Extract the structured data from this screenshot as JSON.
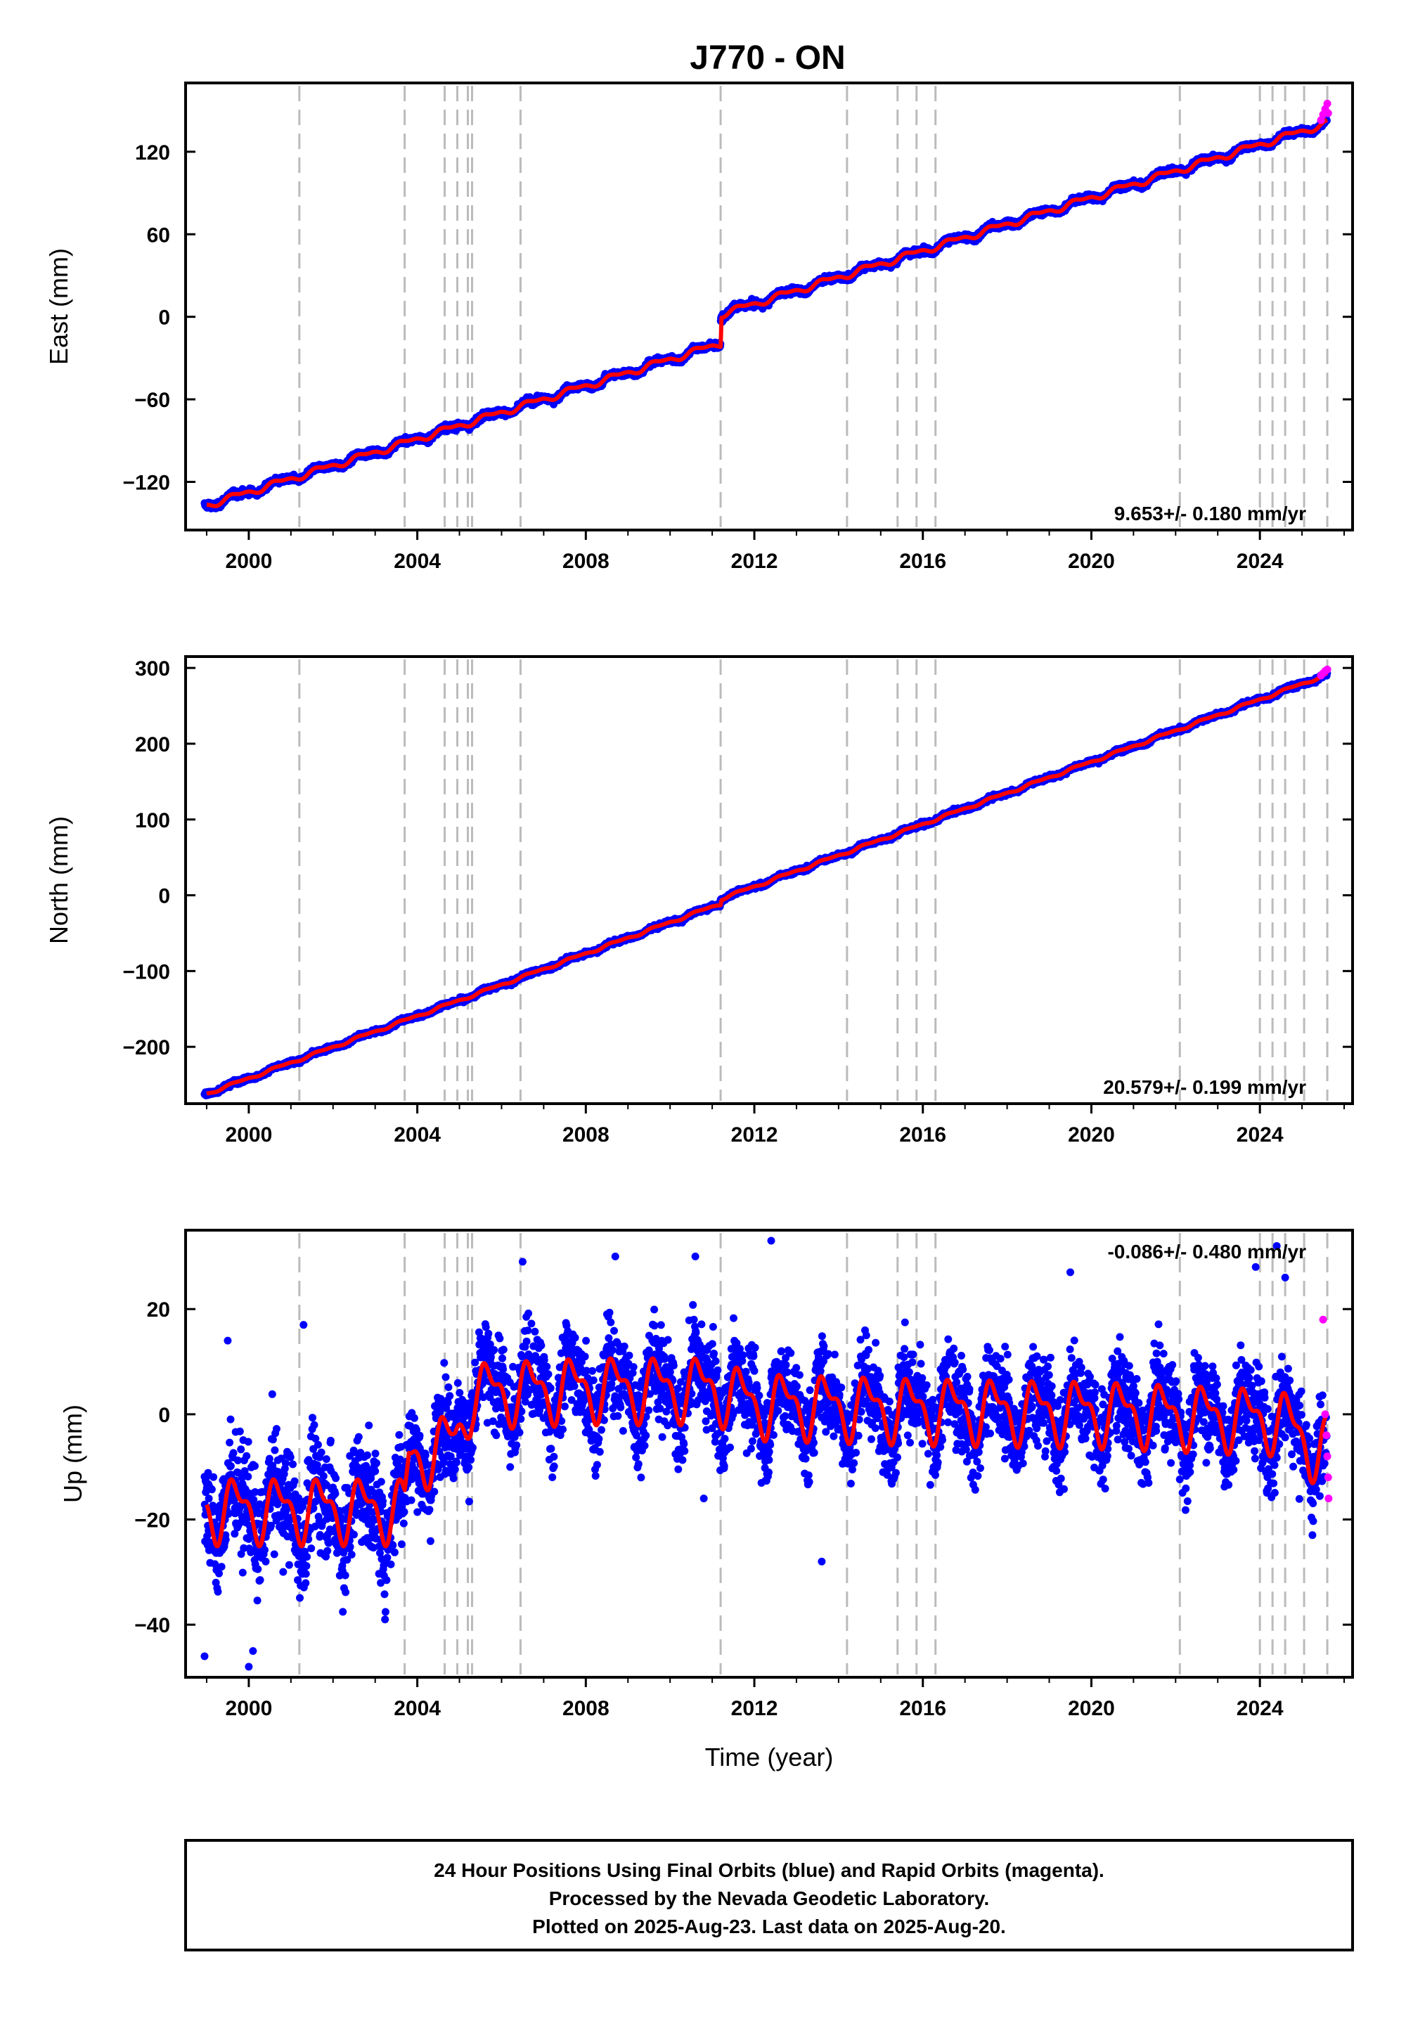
{
  "title": "J770 - ON",
  "footer": {
    "line1": "24 Hour Positions Using Final Orbits (blue) and Rapid Orbits (magenta).",
    "line2": "Processed by the Nevada Geodetic Laboratory.",
    "line3": "Plotted on 2025-Aug-23. Last data on 2025-Aug-20."
  },
  "colors": {
    "final_orbits": "#0000ff",
    "rapid_orbits": "#ff00ff",
    "model": "#ff0000",
    "event_lines": "#bbbbbb"
  },
  "chart_data": [
    {
      "type": "scatter",
      "name": "east",
      "ylabel": "East (mm)",
      "xlabel": "",
      "rate_label": "9.653+/- 0.180 mm/yr",
      "xlim": [
        1998.5,
        2026.2
      ],
      "ylim": [
        -155,
        170
      ],
      "yticks": [
        -120,
        -60,
        0,
        60,
        120
      ],
      "xticks": [
        2000,
        2004,
        2008,
        2012,
        2016,
        2020,
        2024
      ],
      "event_lines": [
        2001.2,
        2003.7,
        2004.65,
        2004.95,
        2005.2,
        2005.3,
        2006.45,
        2011.2,
        2014.2,
        2015.4,
        2015.85,
        2016.3,
        2022.1,
        2024.0,
        2024.3,
        2024.6,
        2025.05,
        2025.6
      ],
      "trend": {
        "rate": 9.653,
        "y_at_1999": -137,
        "offsets": [
          {
            "t": 2011.2,
            "dy": 21
          }
        ]
      },
      "seasonal_amp": 2,
      "noise": 1.6,
      "rapid": [
        [
          2025.45,
          143
        ],
        [
          2025.5,
          147
        ],
        [
          2025.55,
          151
        ],
        [
          2025.6,
          155
        ],
        [
          2025.62,
          148
        ]
      ]
    },
    {
      "type": "scatter",
      "name": "north",
      "ylabel": "North (mm)",
      "xlabel": "",
      "rate_label": "20.579+/- 0.199 mm/yr",
      "xlim": [
        1998.5,
        2026.2
      ],
      "ylim": [
        -275,
        315
      ],
      "yticks": [
        -200,
        -100,
        0,
        100,
        200,
        300
      ],
      "xticks": [
        2000,
        2004,
        2008,
        2012,
        2016,
        2020,
        2024
      ],
      "event_lines": [
        2001.2,
        2003.7,
        2004.65,
        2004.95,
        2005.2,
        2005.3,
        2006.45,
        2011.2,
        2014.2,
        2015.4,
        2015.85,
        2016.3,
        2022.1,
        2024.0,
        2024.3,
        2024.6,
        2025.05,
        2025.6
      ],
      "trend": {
        "rate": 20.579,
        "y_at_1999": -262,
        "offsets": [
          {
            "t": 2011.2,
            "dy": 6
          }
        ]
      },
      "seasonal_amp": 1.5,
      "noise": 2,
      "rapid": [
        [
          2025.45,
          290
        ],
        [
          2025.5,
          293
        ],
        [
          2025.55,
          296
        ],
        [
          2025.6,
          298
        ]
      ]
    },
    {
      "type": "scatter",
      "name": "up",
      "ylabel": "Up (mm)",
      "xlabel": "Time (year)",
      "rate_label": "-0.086+/- 0.480 mm/yr",
      "xlim": [
        1998.5,
        2026.2
      ],
      "ylim": [
        -50,
        35
      ],
      "yticks": [
        -40,
        -20,
        0,
        20
      ],
      "xticks": [
        2000,
        2004,
        2008,
        2012,
        2016,
        2020,
        2024
      ],
      "event_lines": [
        2001.2,
        2003.7,
        2004.65,
        2004.95,
        2005.2,
        2005.3,
        2006.45,
        2011.2,
        2014.2,
        2015.4,
        2015.85,
        2016.3,
        2022.1,
        2024.0,
        2024.3,
        2024.6,
        2025.05,
        2025.6
      ],
      "baseline": [
        [
          1999.0,
          -18
        ],
        [
          2003.7,
          -18
        ],
        [
          2003.8,
          -9
        ],
        [
          2004.9,
          -5
        ],
        [
          2005.3,
          4
        ],
        [
          2008.0,
          5
        ],
        [
          2011.0,
          5
        ],
        [
          2012.0,
          2
        ],
        [
          2016.0,
          1
        ],
        [
          2020.0,
          0.5
        ],
        [
          2024.5,
          -1
        ],
        [
          2025.2,
          -6
        ],
        [
          2025.6,
          -6
        ]
      ],
      "seasonal_amp": 5,
      "noise": 6,
      "outliers": [
        [
          1998.95,
          -46
        ],
        [
          1999.5,
          14
        ],
        [
          2000.1,
          -45
        ],
        [
          2000.0,
          -48
        ],
        [
          2001.3,
          17
        ],
        [
          2006.5,
          29
        ],
        [
          2008.7,
          30
        ],
        [
          2010.6,
          30
        ],
        [
          2010.8,
          -16
        ],
        [
          2012.4,
          33
        ],
        [
          2013.6,
          -28
        ],
        [
          2019.5,
          27
        ],
        [
          2023.9,
          28
        ],
        [
          2024.4,
          32
        ],
        [
          2024.6,
          26
        ]
      ],
      "rapid": [
        [
          2025.5,
          18
        ],
        [
          2025.55,
          0
        ],
        [
          2025.58,
          -4
        ],
        [
          2025.6,
          -8
        ],
        [
          2025.62,
          -12
        ],
        [
          2025.63,
          -16
        ]
      ]
    }
  ]
}
